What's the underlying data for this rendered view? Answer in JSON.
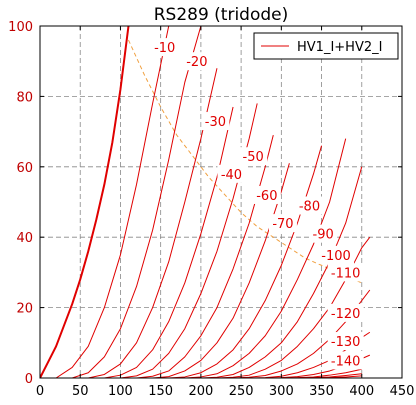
{
  "title": "RS289 (tridode)",
  "legend": {
    "label": "HV1_I+HV2_I",
    "color": "#e00000",
    "placement": "top-right"
  },
  "colors": {
    "curve": "#e00000",
    "tick_label": "#c00000",
    "grid": "#888888",
    "power_line": "#f0a040"
  },
  "chart_data": {
    "type": "line",
    "title": "RS289 (tridode)",
    "xlim": [
      0,
      450
    ],
    "ylim": [
      0,
      100
    ],
    "x_ticks": [
      0,
      50,
      100,
      150,
      200,
      250,
      300,
      350,
      400,
      450
    ],
    "y_ticks": [
      0,
      20,
      40,
      60,
      80,
      100
    ],
    "grid": true,
    "legend_placement": "top-right",
    "series": [
      {
        "name": "HV1_I+HV2_I",
        "bold": true,
        "label": "",
        "label_at": null,
        "x": [
          0,
          10,
          20,
          30,
          40,
          50,
          60,
          70,
          80,
          90,
          100,
          110
        ],
        "y": [
          0,
          4.5,
          9,
          15,
          21,
          28,
          36,
          45,
          55,
          67,
          82,
          100
        ]
      },
      {
        "label": "-10",
        "label_at": [
          155,
          94
        ],
        "x": [
          20,
          40,
          60,
          80,
          100,
          120,
          140,
          160
        ],
        "y": [
          0,
          3,
          9,
          20,
          35,
          55,
          78,
          100
        ]
      },
      {
        "label": "-20",
        "label_at": [
          195,
          90
        ],
        "x": [
          40,
          60,
          80,
          100,
          120,
          140,
          160,
          180,
          200
        ],
        "y": [
          0,
          1.5,
          6,
          14,
          26,
          42,
          62,
          84,
          100
        ]
      },
      {
        "label": "-30",
        "label_at": [
          218,
          73
        ],
        "x": [
          60,
          80,
          100,
          120,
          140,
          160,
          180,
          200,
          220
        ],
        "y": [
          0,
          1,
          4,
          10,
          20,
          33,
          50,
          68,
          88
        ]
      },
      {
        "label": "-40",
        "label_at": [
          238,
          58
        ],
        "x": [
          80,
          100,
          120,
          140,
          160,
          180,
          200,
          220,
          240
        ],
        "y": [
          0,
          0.8,
          3,
          8,
          16,
          27,
          41,
          57,
          77
        ]
      },
      {
        "label": "-50",
        "label_at": [
          265,
          63
        ],
        "x": [
          100,
          120,
          140,
          160,
          180,
          200,
          220,
          240,
          260,
          270
        ],
        "y": [
          0,
          0.6,
          2.5,
          7,
          14,
          24,
          36,
          51,
          68,
          78
        ]
      },
      {
        "label": "-60",
        "label_at": [
          282,
          52
        ],
        "x": [
          120,
          140,
          160,
          180,
          200,
          220,
          240,
          260,
          280,
          290
        ],
        "y": [
          0,
          0.5,
          2,
          6,
          12,
          20,
          31,
          44,
          60,
          69
        ]
      },
      {
        "label": "-70",
        "label_at": [
          302,
          44
        ],
        "x": [
          140,
          160,
          180,
          200,
          220,
          240,
          260,
          280,
          300,
          310
        ],
        "y": [
          0,
          0.4,
          2,
          5,
          10,
          17,
          27,
          39,
          53,
          61
        ]
      },
      {
        "label": "-80",
        "label_at": [
          335,
          49
        ],
        "x": [
          160,
          180,
          200,
          220,
          240,
          260,
          280,
          300,
          320,
          340,
          350
        ],
        "y": [
          0,
          0.3,
          1.5,
          4,
          8,
          14,
          22,
          32,
          44,
          58,
          66
        ]
      },
      {
        "label": "-90",
        "label_at": [
          352,
          41
        ],
        "x": [
          180,
          200,
          220,
          240,
          260,
          280,
          300,
          320,
          340,
          360,
          380
        ],
        "y": [
          0,
          0.3,
          1.2,
          3.5,
          7,
          12,
          19,
          28,
          38,
          50,
          68
        ]
      },
      {
        "label": "-100",
        "label_at": [
          368,
          35
        ],
        "x": [
          200,
          220,
          240,
          260,
          280,
          300,
          320,
          340,
          360,
          380,
          400
        ],
        "y": [
          0,
          0.2,
          1,
          3,
          6,
          10,
          16,
          24,
          33,
          44,
          60
        ]
      },
      {
        "label": "-110",
        "label_at": [
          380,
          30
        ],
        "x": [
          220,
          240,
          260,
          280,
          300,
          320,
          340,
          360,
          380,
          400,
          410
        ],
        "y": [
          0,
          0.2,
          0.8,
          2.5,
          5,
          9,
          14,
          20,
          28,
          37,
          40
        ]
      },
      {
        "label": "-120",
        "label_at": [
          380,
          18.5
        ],
        "x": [
          240,
          260,
          280,
          300,
          320,
          340,
          360,
          380,
          400,
          410
        ],
        "y": [
          0,
          0.2,
          0.7,
          2,
          4,
          7,
          11,
          16,
          22,
          25
        ]
      },
      {
        "label": "-130",
        "label_at": [
          380,
          10.5
        ],
        "x": [
          260,
          280,
          300,
          320,
          340,
          360,
          380,
          400,
          410
        ],
        "y": [
          0,
          0.1,
          0.5,
          1.5,
          3,
          5,
          8,
          11.5,
          13
        ]
      },
      {
        "label": "-140",
        "label_at": [
          380,
          5
        ],
        "x": [
          280,
          300,
          320,
          340,
          360,
          380,
          400,
          410
        ],
        "y": [
          0,
          0.1,
          0.4,
          1,
          2,
          3.5,
          5.5,
          6.5
        ]
      },
      {
        "label": "",
        "label_at": null,
        "x": [
          300,
          320,
          340,
          360,
          380,
          400
        ],
        "y": [
          0,
          0.1,
          0.3,
          0.8,
          1.5,
          2.5
        ]
      },
      {
        "label": "",
        "label_at": null,
        "x": [
          320,
          340,
          360,
          380,
          400
        ],
        "y": [
          0,
          0.1,
          0.3,
          0.7,
          1.2
        ]
      },
      {
        "label": "",
        "label_at": null,
        "x": [
          340,
          360,
          380,
          400
        ],
        "y": [
          0,
          0.1,
          0.3,
          0.6
        ]
      }
    ],
    "power_line": {
      "style": "dashed",
      "x": [
        110,
        130,
        150,
        170,
        190,
        210,
        230,
        250,
        270,
        290,
        310,
        330,
        350,
        370,
        390,
        400
      ],
      "y": [
        96,
        86,
        77,
        69,
        63,
        57,
        52,
        47,
        43,
        40,
        37,
        34,
        32,
        30,
        28,
        27
      ]
    }
  }
}
